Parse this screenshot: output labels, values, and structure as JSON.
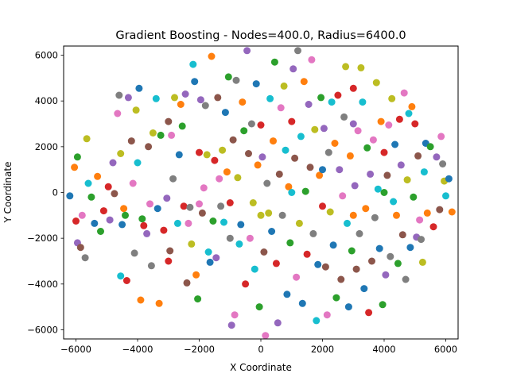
{
  "chart_data": {
    "type": "scatter",
    "title": "Gradient Boosting - Nodes=400.0, Radius=6400.0",
    "xlabel": "X Coordinate",
    "ylabel": "Y Coordinate",
    "xlim": [
      -6400,
      6400
    ],
    "ylim": [
      -6400,
      6400
    ],
    "xticks": [
      -6000,
      -4000,
      -2000,
      0,
      2000,
      4000,
      6000
    ],
    "yticks": [
      -6000,
      -4000,
      -2000,
      0,
      2000,
      4000,
      6000
    ],
    "grid": false,
    "colors": [
      "#1f77b4",
      "#ff7f0e",
      "#2ca02c",
      "#d62728",
      "#9467bd",
      "#8c564b",
      "#e377c2",
      "#7f7f7f",
      "#bcbd22",
      "#17becf"
    ],
    "points": [
      [
        -6200,
        -150
      ],
      [
        -6050,
        1100
      ],
      [
        -5950,
        1550
      ],
      [
        -6000,
        -1250
      ],
      [
        -5950,
        -2200
      ],
      [
        -5850,
        -2400
      ],
      [
        -5800,
        -1000
      ],
      [
        -5700,
        -2850
      ],
      [
        -5650,
        2350
      ],
      [
        -5600,
        400
      ],
      [
        -5400,
        -1350
      ],
      [
        -5300,
        700
      ],
      [
        -5200,
        -1700
      ],
      [
        -4950,
        250
      ],
      [
        -4800,
        1300
      ],
      [
        -4750,
        -50
      ],
      [
        -4650,
        3450
      ],
      [
        -4600,
        4250
      ],
      [
        -4550,
        1700
      ],
      [
        -4550,
        -3650
      ],
      [
        -4500,
        -1400
      ],
      [
        -4450,
        -700
      ],
      [
        -4400,
        -1000
      ],
      [
        -4350,
        -3850
      ],
      [
        -4300,
        4150
      ],
      [
        -4200,
        2250
      ],
      [
        -4150,
        400
      ],
      [
        -4100,
        -2650
      ],
      [
        -4050,
        3600
      ],
      [
        -4000,
        1300
      ],
      [
        -3950,
        4550
      ],
      [
        -3900,
        -4700
      ],
      [
        -3850,
        -1150
      ],
      [
        -3800,
        -1450
      ],
      [
        -3700,
        -1800
      ],
      [
        -3650,
        2000
      ],
      [
        -3600,
        -500
      ],
      [
        -3550,
        -3200
      ],
      [
        -3500,
        2600
      ],
      [
        -3400,
        4100
      ],
      [
        -3350,
        -700
      ],
      [
        -3300,
        -4850
      ],
      [
        -3250,
        2500
      ],
      [
        -3150,
        -1650
      ],
      [
        -3050,
        -250
      ],
      [
        -2950,
        -2550
      ],
      [
        -2900,
        2500
      ],
      [
        -2850,
        600
      ],
      [
        -2800,
        4150
      ],
      [
        -2700,
        -1350
      ],
      [
        -2650,
        1650
      ],
      [
        -2600,
        3850
      ],
      [
        -2550,
        2900
      ],
      [
        -2500,
        -600
      ],
      [
        -2450,
        4300
      ],
      [
        -2400,
        -3950
      ],
      [
        -2350,
        -1350
      ],
      [
        -2300,
        -650
      ],
      [
        -2250,
        -2250
      ],
      [
        -2200,
        5600
      ],
      [
        -2150,
        4850
      ],
      [
        -2100,
        -3600
      ],
      [
        -2050,
        -4650
      ],
      [
        -2000,
        1750
      ],
      [
        -1950,
        4050
      ],
      [
        -1900,
        -900
      ],
      [
        -1850,
        200
      ],
      [
        -1800,
        3800
      ],
      [
        -1750,
        1650
      ],
      [
        -1700,
        -2600
      ],
      [
        -1650,
        -3050
      ],
      [
        -1600,
        5950
      ],
      [
        -1550,
        -1250
      ],
      [
        -1500,
        1400
      ],
      [
        -1450,
        -2850
      ],
      [
        -1400,
        4150
      ],
      [
        -1350,
        600
      ],
      [
        -1300,
        -600
      ],
      [
        -1250,
        1850
      ],
      [
        -1200,
        -1300
      ],
      [
        -1150,
        3500
      ],
      [
        -1100,
        900
      ],
      [
        -1050,
        5050
      ],
      [
        -1000,
        -450
      ],
      [
        -950,
        -5800
      ],
      [
        -900,
        2300
      ],
      [
        -850,
        -5350
      ],
      [
        -800,
        4900
      ],
      [
        -750,
        650
      ],
      [
        -700,
        -2250
      ],
      [
        -650,
        -1400
      ],
      [
        -600,
        3950
      ],
      [
        -550,
        2700
      ],
      [
        -500,
        -4000
      ],
      [
        -450,
        6200
      ],
      [
        -400,
        1700
      ],
      [
        -350,
        -2000
      ],
      [
        -300,
        3000
      ],
      [
        -250,
        -450
      ],
      [
        -200,
        -3350
      ],
      [
        -150,
        4750
      ],
      [
        -100,
        1200
      ],
      [
        -50,
        -5000
      ],
      [
        0,
        2950
      ],
      [
        50,
        1550
      ],
      [
        100,
        -2600
      ],
      [
        150,
        -6250
      ],
      [
        200,
        400
      ],
      [
        250,
        -900
      ],
      [
        300,
        4100
      ],
      [
        350,
        -1700
      ],
      [
        400,
        2250
      ],
      [
        450,
        5700
      ],
      [
        500,
        -3100
      ],
      [
        550,
        -5700
      ],
      [
        600,
        800
      ],
      [
        650,
        3700
      ],
      [
        700,
        -1000
      ],
      [
        750,
        4650
      ],
      [
        800,
        1850
      ],
      [
        850,
        -4450
      ],
      [
        900,
        250
      ],
      [
        950,
        -2200
      ],
      [
        1000,
        3100
      ],
      [
        1050,
        5400
      ],
      [
        1100,
        1500
      ],
      [
        1150,
        -3700
      ],
      [
        1200,
        6200
      ],
      [
        1250,
        -1350
      ],
      [
        1300,
        2450
      ],
      [
        1350,
        -4850
      ],
      [
        1400,
        4850
      ],
      [
        1450,
        50
      ],
      [
        1500,
        -2700
      ],
      [
        1550,
        3850
      ],
      [
        1600,
        1100
      ],
      [
        1650,
        5800
      ],
      [
        1700,
        -1800
      ],
      [
        1750,
        2750
      ],
      [
        1800,
        -5600
      ],
      [
        1850,
        -3150
      ],
      [
        1900,
        750
      ],
      [
        1950,
        4150
      ],
      [
        2000,
        -600
      ],
      [
        2050,
        2800
      ],
      [
        2100,
        -3250
      ],
      [
        2150,
        -5350
      ],
      [
        2200,
        1750
      ],
      [
        2250,
        -850
      ],
      [
        2300,
        3950
      ],
      [
        2350,
        -2300
      ],
      [
        2400,
        2150
      ],
      [
        2450,
        -4600
      ],
      [
        2500,
        4250
      ],
      [
        2550,
        1000
      ],
      [
        2600,
        -3800
      ],
      [
        2650,
        -150
      ],
      [
        2700,
        3300
      ],
      [
        2750,
        5500
      ],
      [
        2800,
        -1350
      ],
      [
        2850,
        -5000
      ],
      [
        2900,
        1600
      ],
      [
        2950,
        -2550
      ],
      [
        3000,
        4550
      ],
      [
        3050,
        300
      ],
      [
        3100,
        -3350
      ],
      [
        3150,
        2700
      ],
      [
        3200,
        -1800
      ],
      [
        3250,
        5450
      ],
      [
        3300,
        3950
      ],
      [
        3350,
        -4200
      ],
      [
        3400,
        -700
      ],
      [
        3450,
        1950
      ],
      [
        3500,
        -5250
      ],
      [
        3550,
        800
      ],
      [
        3600,
        -3000
      ],
      [
        3650,
        2300
      ],
      [
        3700,
        -1100
      ],
      [
        3750,
        4800
      ],
      [
        3800,
        150
      ],
      [
        3850,
        -2450
      ],
      [
        3900,
        3100
      ],
      [
        3950,
        -4900
      ],
      [
        4000,
        1750
      ],
      [
        4050,
        -3600
      ],
      [
        4100,
        750
      ],
      [
        4150,
        2950
      ],
      [
        4200,
        -2800
      ],
      [
        4250,
        4100
      ],
      [
        4300,
        -400
      ],
      [
        4350,
        2100
      ],
      [
        4400,
        -1000
      ],
      [
        4450,
        -3100
      ],
      [
        4500,
        3200
      ],
      [
        4550,
        1200
      ],
      [
        4600,
        -1850
      ],
      [
        4650,
        4350
      ],
      [
        4700,
        -3800
      ],
      [
        4750,
        550
      ],
      [
        4800,
        3450
      ],
      [
        4850,
        -2400
      ],
      [
        4900,
        3750
      ],
      [
        4950,
        -200
      ],
      [
        5000,
        3000
      ],
      [
        5050,
        -1950
      ],
      [
        5100,
        1600
      ],
      [
        5150,
        -1200
      ],
      [
        5200,
        -2050
      ],
      [
        5250,
        -3050
      ],
      [
        5300,
        900
      ],
      [
        5350,
        2150
      ],
      [
        5400,
        -900
      ],
      [
        5500,
        2000
      ],
      [
        5600,
        -1500
      ],
      [
        5700,
        1550
      ],
      [
        5800,
        -750
      ],
      [
        5850,
        2450
      ],
      [
        5900,
        1250
      ],
      [
        5950,
        500
      ],
      [
        6000,
        -150
      ],
      [
        6100,
        600
      ],
      [
        6200,
        -850
      ],
      [
        -5500,
        -200
      ],
      [
        -5100,
        -800
      ],
      [
        -4900,
        -1200
      ],
      [
        -3000,
        3100
      ],
      [
        -2000,
        -500
      ],
      [
        -1000,
        -2000
      ],
      [
        0,
        -1000
      ],
      [
        1000,
        0
      ],
      [
        2000,
        1000
      ],
      [
        3000,
        -1000
      ],
      [
        4000,
        0
      ],
      [
        -3000,
        -3000
      ],
      [
        3000,
        3000
      ]
    ]
  }
}
